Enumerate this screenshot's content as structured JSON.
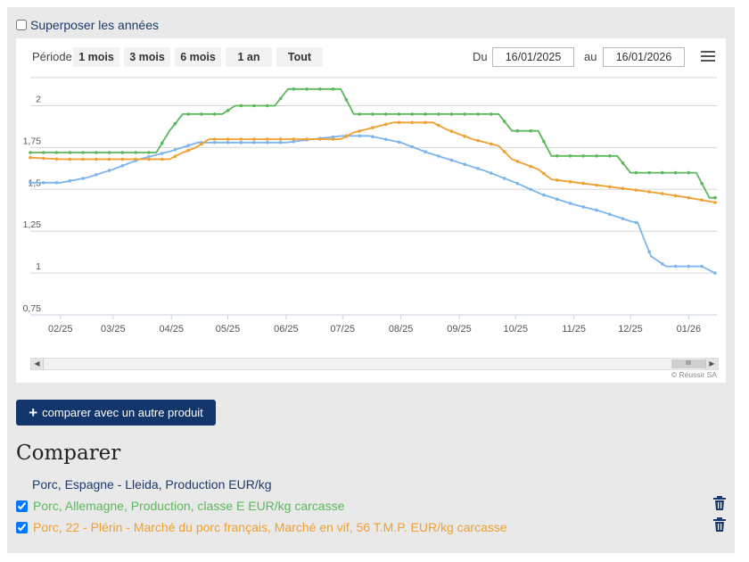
{
  "overlay_label": "Superposer les années",
  "toolbar": {
    "period_label": "Période",
    "ranges": [
      "1 mois",
      "3 mois",
      "6 mois",
      "1 an",
      "Tout"
    ],
    "from_label": "Du",
    "from_value": "16/01/2025",
    "to_label": "au",
    "to_value": "16/01/2026"
  },
  "navigator": {
    "thumb_label": "III"
  },
  "credit": "© Réussir SA",
  "compare_button": "comparer avec un autre produit",
  "compare_title": "Comparer",
  "products": [
    {
      "label": "Porc, Espagne - Lleida, Production EUR/kg",
      "color": "#1d3a6b",
      "checkbox": false
    },
    {
      "label": "Porc, Allemagne, Production, classe E EUR/kg carcasse",
      "color": "#5cb85c",
      "checkbox": true
    },
    {
      "label": "Porc, 22 - Plérin - Marché du porc français, Marché en vif, 56 T.M.P. EUR/kg carcasse",
      "color": "#f0a030",
      "checkbox": true
    }
  ],
  "chart_data": {
    "type": "line",
    "x_categories": [
      "02/25",
      "03/25",
      "04/25",
      "05/25",
      "06/25",
      "07/25",
      "08/25",
      "09/25",
      "10/25",
      "11/25",
      "12/25",
      "01/26"
    ],
    "y_ticks": [
      "0,75",
      "1",
      "1,25",
      "1,5",
      "1,75",
      "2"
    ],
    "ylim": [
      0.75,
      2.2
    ],
    "xlim": [
      "2025-01-16",
      "2026-01-16"
    ],
    "grid": true,
    "series": [
      {
        "color": "#7cb5ec",
        "points": [
          [
            "2025-01-16",
            1.54
          ],
          [
            "2025-02-01",
            1.54
          ],
          [
            "2025-02-15",
            1.57
          ],
          [
            "2025-03-01",
            1.62
          ],
          [
            "2025-03-15",
            1.68
          ],
          [
            "2025-04-01",
            1.73
          ],
          [
            "2025-04-15",
            1.78
          ],
          [
            "2025-05-01",
            1.78
          ],
          [
            "2025-05-15",
            1.78
          ],
          [
            "2025-06-01",
            1.78
          ],
          [
            "2025-06-15",
            1.8
          ],
          [
            "2025-07-01",
            1.82
          ],
          [
            "2025-07-15",
            1.82
          ],
          [
            "2025-08-01",
            1.78
          ],
          [
            "2025-08-15",
            1.72
          ],
          [
            "2025-09-01",
            1.66
          ],
          [
            "2025-09-15",
            1.61
          ],
          [
            "2025-10-01",
            1.54
          ],
          [
            "2025-10-15",
            1.47
          ],
          [
            "2025-11-01",
            1.41
          ],
          [
            "2025-11-15",
            1.37
          ],
          [
            "2025-12-01",
            1.31
          ],
          [
            "2025-12-05",
            1.3
          ],
          [
            "2025-12-08",
            1.21
          ],
          [
            "2025-12-12",
            1.1
          ],
          [
            "2025-12-20",
            1.04
          ],
          [
            "2026-01-01",
            1.04
          ],
          [
            "2026-01-08",
            1.04
          ],
          [
            "2026-01-15",
            1.0
          ]
        ]
      },
      {
        "color": "#5cb85c",
        "points": [
          [
            "2025-01-16",
            1.72
          ],
          [
            "2025-03-24",
            1.72
          ],
          [
            "2025-03-31",
            1.85
          ],
          [
            "2025-04-07",
            1.95
          ],
          [
            "2025-04-28",
            1.95
          ],
          [
            "2025-05-05",
            2.0
          ],
          [
            "2025-05-26",
            2.0
          ],
          [
            "2025-06-02",
            2.1
          ],
          [
            "2025-06-30",
            2.1
          ],
          [
            "2025-07-07",
            1.95
          ],
          [
            "2025-09-22",
            1.95
          ],
          [
            "2025-09-29",
            1.85
          ],
          [
            "2025-10-13",
            1.85
          ],
          [
            "2025-10-20",
            1.7
          ],
          [
            "2025-11-24",
            1.7
          ],
          [
            "2025-12-01",
            1.6
          ],
          [
            "2026-01-05",
            1.6
          ],
          [
            "2026-01-12",
            1.45
          ],
          [
            "2026-01-16",
            1.45
          ]
        ]
      },
      {
        "color": "#f0a030",
        "points": [
          [
            "2025-01-16",
            1.69
          ],
          [
            "2025-02-01",
            1.68
          ],
          [
            "2025-03-01",
            1.68
          ],
          [
            "2025-03-31",
            1.68
          ],
          [
            "2025-04-07",
            1.72
          ],
          [
            "2025-04-14",
            1.75
          ],
          [
            "2025-04-21",
            1.8
          ],
          [
            "2025-05-15",
            1.8
          ],
          [
            "2025-06-15",
            1.8
          ],
          [
            "2025-06-30",
            1.8
          ],
          [
            "2025-07-07",
            1.84
          ],
          [
            "2025-07-21",
            1.88
          ],
          [
            "2025-07-28",
            1.9
          ],
          [
            "2025-08-18",
            1.9
          ],
          [
            "2025-08-25",
            1.86
          ],
          [
            "2025-09-08",
            1.8
          ],
          [
            "2025-09-22",
            1.76
          ],
          [
            "2025-09-29",
            1.68
          ],
          [
            "2025-10-13",
            1.62
          ],
          [
            "2025-10-20",
            1.56
          ],
          [
            "2025-11-10",
            1.53
          ],
          [
            "2025-12-01",
            1.5
          ],
          [
            "2025-12-15",
            1.48
          ],
          [
            "2026-01-01",
            1.45
          ],
          [
            "2026-01-16",
            1.42
          ]
        ]
      }
    ]
  }
}
